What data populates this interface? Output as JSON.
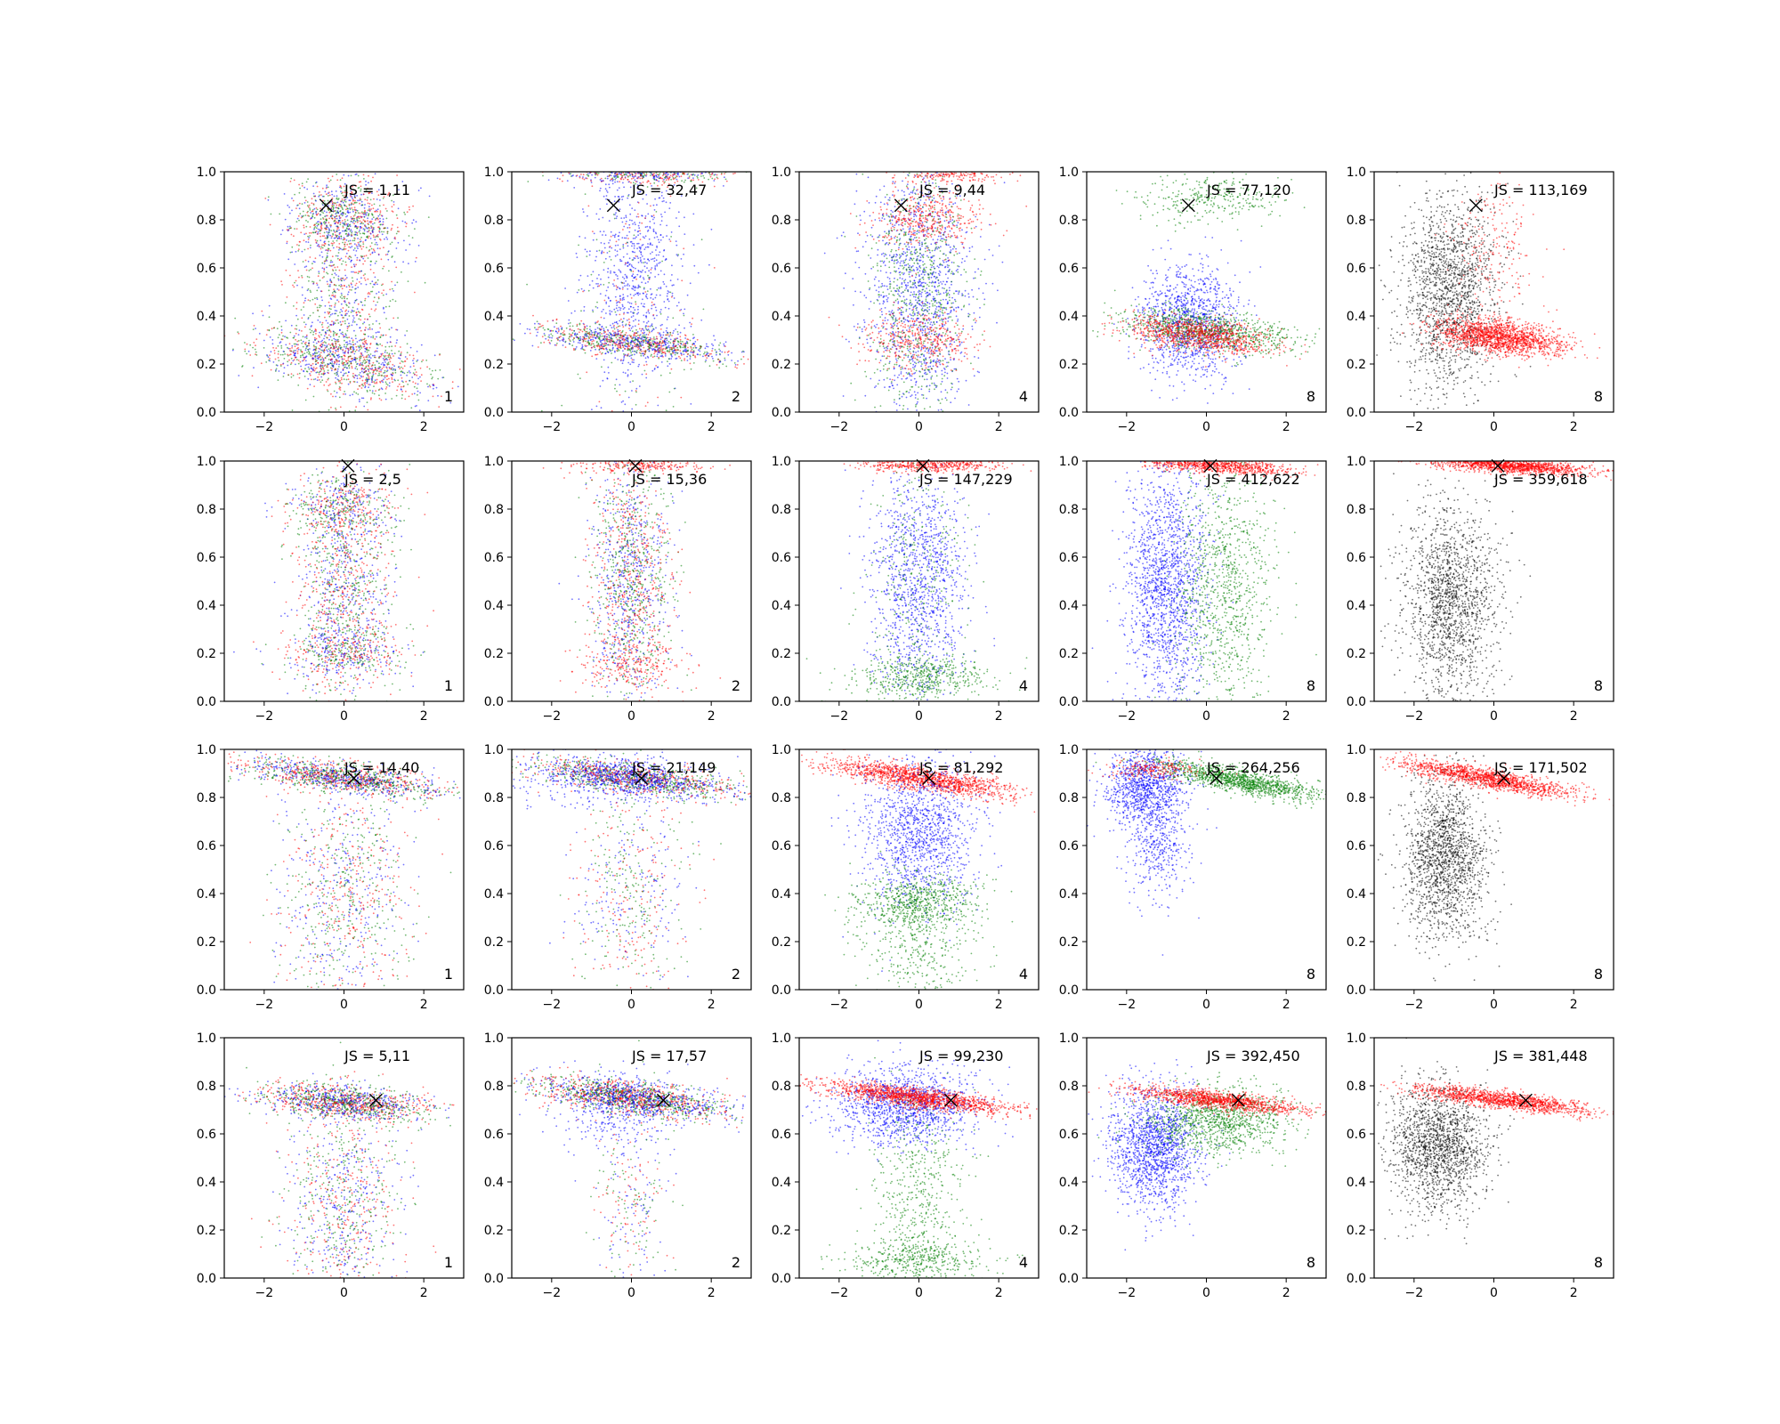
{
  "figure": {
    "colors": {
      "red": "#ff0000",
      "green": "#008000",
      "blue": "#0000ff",
      "black": "#000000"
    }
  },
  "chart_data": [
    {
      "type": "scatter",
      "row": 1,
      "col": 1,
      "annotation": "JS = 1,11",
      "label": "1",
      "marker": {
        "x": -0.45,
        "y": 0.86
      },
      "xlim": [
        -3,
        3
      ],
      "ylim": [
        0,
        1
      ],
      "xticks": [
        -2,
        0,
        2
      ],
      "yticks": [
        0.0,
        0.2,
        0.4,
        0.6,
        0.8,
        1.0
      ],
      "clusters": [
        {
          "color": "mixed",
          "cx": 0,
          "cy": 0.21,
          "sx": 1.1,
          "sy": 0.06,
          "slope": -0.03,
          "n": 1000
        },
        {
          "color": "mixed",
          "cx": 0,
          "cy": 0.8,
          "sx": 0.7,
          "sy": 0.07,
          "n": 700
        },
        {
          "color": "mixed",
          "cx": 0,
          "cy": 0.5,
          "sx": 0.7,
          "sy": 0.28,
          "n": 1100
        }
      ]
    },
    {
      "type": "scatter",
      "row": 1,
      "col": 2,
      "annotation": "JS = 32,47",
      "label": "2",
      "marker": {
        "x": -0.45,
        "y": 0.86
      },
      "xlim": [
        -3,
        3
      ],
      "ylim": [
        0,
        1
      ],
      "xticks": [
        -2,
        0,
        2
      ],
      "yticks": [
        0.0,
        0.2,
        0.4,
        0.6,
        0.8,
        1.0
      ],
      "clusters": [
        {
          "color": "mixed",
          "cx": 0,
          "cy": 0.29,
          "sx": 1.2,
          "sy": 0.03,
          "slope": -0.02,
          "n": 1100
        },
        {
          "color": "mixed",
          "cx": 0.4,
          "cy": 0.99,
          "sx": 1.0,
          "sy": 0.02,
          "n": 500
        },
        {
          "color": "blue",
          "cx": 0,
          "cy": 0.6,
          "sx": 0.6,
          "sy": 0.25,
          "n": 700
        },
        {
          "color": "mixed",
          "cx": 0,
          "cy": 0.45,
          "sx": 0.8,
          "sy": 0.3,
          "n": 300
        }
      ]
    },
    {
      "type": "scatter",
      "row": 1,
      "col": 3,
      "annotation": "JS = 9,44",
      "label": "4",
      "marker": {
        "x": -0.45,
        "y": 0.86
      },
      "xlim": [
        -3,
        3
      ],
      "ylim": [
        0,
        1
      ],
      "xticks": [
        -2,
        0,
        2
      ],
      "yticks": [
        0.0,
        0.2,
        0.4,
        0.6,
        0.8,
        1.0
      ],
      "clusters": [
        {
          "color": "blue",
          "cx": 0,
          "cy": 0.5,
          "sx": 0.7,
          "sy": 0.28,
          "n": 1200
        },
        {
          "color": "red",
          "cx": 0.2,
          "cy": 0.8,
          "sx": 0.7,
          "sy": 0.06,
          "n": 400
        },
        {
          "color": "red",
          "cx": 0,
          "cy": 0.3,
          "sx": 0.7,
          "sy": 0.06,
          "n": 400
        },
        {
          "color": "green",
          "cx": 0,
          "cy": 0.5,
          "sx": 0.6,
          "sy": 0.3,
          "n": 700
        },
        {
          "color": "red",
          "cx": 0.8,
          "cy": 0.99,
          "sx": 0.7,
          "sy": 0.02,
          "n": 200
        }
      ]
    },
    {
      "type": "scatter",
      "row": 1,
      "col": 4,
      "annotation": "JS = 77,120",
      "label": "8",
      "marker": {
        "x": -0.45,
        "y": 0.86
      },
      "xlim": [
        -3,
        3
      ],
      "ylim": [
        0,
        1
      ],
      "xticks": [
        -2,
        0,
        2
      ],
      "yticks": [
        0.0,
        0.2,
        0.4,
        0.6,
        0.8,
        1.0
      ],
      "clusters": [
        {
          "color": "blue",
          "cx": -0.4,
          "cy": 0.38,
          "sx": 0.6,
          "sy": 0.12,
          "n": 1100
        },
        {
          "color": "green",
          "cx": 0,
          "cy": 0.34,
          "sx": 1.1,
          "sy": 0.04,
          "slope": -0.02,
          "n": 900
        },
        {
          "color": "red",
          "cx": -0.2,
          "cy": 0.32,
          "sx": 0.9,
          "sy": 0.035,
          "slope": -0.02,
          "n": 900
        },
        {
          "color": "green",
          "cx": 0.1,
          "cy": 0.89,
          "sx": 0.9,
          "sy": 0.05,
          "n": 300
        }
      ]
    },
    {
      "type": "scatter",
      "row": 1,
      "col": 5,
      "annotation": "JS = 113,169",
      "label": "8",
      "marker": {
        "x": -0.45,
        "y": 0.86
      },
      "xlim": [
        -3,
        3
      ],
      "ylim": [
        0,
        1
      ],
      "xticks": [
        -2,
        0,
        2
      ],
      "yticks": [
        0.0,
        0.2,
        0.4,
        0.6,
        0.8,
        1.0
      ],
      "clusters": [
        {
          "color": "black",
          "cx": -1.1,
          "cy": 0.5,
          "sx": 0.6,
          "sy": 0.2,
          "n": 1600
        },
        {
          "color": "red",
          "cx": 0.2,
          "cy": 0.31,
          "sx": 0.8,
          "sy": 0.035,
          "slope": -0.02,
          "n": 1600
        },
        {
          "color": "red",
          "cx": 0,
          "cy": 0.68,
          "sx": 0.5,
          "sy": 0.15,
          "n": 200
        }
      ]
    },
    {
      "type": "scatter",
      "row": 2,
      "col": 1,
      "annotation": "JS = 2,5",
      "label": "1",
      "marker": {
        "x": 0.1,
        "y": 0.98
      },
      "xlim": [
        -3,
        3
      ],
      "ylim": [
        0,
        1
      ],
      "xticks": [
        -2,
        0,
        2
      ],
      "yticks": [
        0.0,
        0.2,
        0.4,
        0.6,
        0.8,
        1.0
      ],
      "clusters": [
        {
          "color": "mixed",
          "cx": 0,
          "cy": 0.5,
          "sx": 0.6,
          "sy": 0.28,
          "n": 1500
        },
        {
          "color": "mixed",
          "cx": 0,
          "cy": 0.2,
          "sx": 0.8,
          "sy": 0.05,
          "n": 400
        },
        {
          "color": "mixed",
          "cx": 0,
          "cy": 0.8,
          "sx": 0.7,
          "sy": 0.05,
          "n": 400
        }
      ]
    },
    {
      "type": "scatter",
      "row": 2,
      "col": 2,
      "annotation": "JS = 15,36",
      "label": "2",
      "marker": {
        "x": 0.1,
        "y": 0.98
      },
      "xlim": [
        -3,
        3
      ],
      "ylim": [
        0,
        1
      ],
      "xticks": [
        -2,
        0,
        2
      ],
      "yticks": [
        0.0,
        0.2,
        0.4,
        0.6,
        0.8,
        1.0
      ],
      "clusters": [
        {
          "color": "mixed",
          "cx": 0,
          "cy": 0.5,
          "sx": 0.5,
          "sy": 0.28,
          "n": 1700
        },
        {
          "color": "red",
          "cx": 0.3,
          "cy": 0.99,
          "sx": 0.8,
          "sy": 0.02,
          "n": 300
        },
        {
          "color": "red",
          "cx": 0,
          "cy": 0.15,
          "sx": 0.7,
          "sy": 0.05,
          "n": 200
        }
      ]
    },
    {
      "type": "scatter",
      "row": 2,
      "col": 3,
      "annotation": "JS = 147,229",
      "label": "4",
      "marker": {
        "x": 0.1,
        "y": 0.98
      },
      "xlim": [
        -3,
        3
      ],
      "ylim": [
        0,
        1
      ],
      "xticks": [
        -2,
        0,
        2
      ],
      "yticks": [
        0.0,
        0.2,
        0.4,
        0.6,
        0.8,
        1.0
      ],
      "clusters": [
        {
          "color": "blue",
          "cx": 0,
          "cy": 0.5,
          "sx": 0.6,
          "sy": 0.25,
          "n": 1200
        },
        {
          "color": "green",
          "cx": 0,
          "cy": 0.1,
          "sx": 0.9,
          "sy": 0.05,
          "n": 500
        },
        {
          "color": "red",
          "cx": 0.3,
          "cy": 0.985,
          "sx": 0.9,
          "sy": 0.015,
          "n": 500
        },
        {
          "color": "green",
          "cx": 0,
          "cy": 0.5,
          "sx": 0.6,
          "sy": 0.3,
          "n": 300
        }
      ]
    },
    {
      "type": "scatter",
      "row": 2,
      "col": 4,
      "annotation": "JS = 412,622",
      "label": "8",
      "marker": {
        "x": 0.1,
        "y": 0.98
      },
      "xlim": [
        -3,
        3
      ],
      "ylim": [
        0,
        1
      ],
      "xticks": [
        -2,
        0,
        2
      ],
      "yticks": [
        0.0,
        0.2,
        0.4,
        0.6,
        0.8,
        1.0
      ],
      "clusters": [
        {
          "color": "blue",
          "cx": -1.0,
          "cy": 0.5,
          "sx": 0.5,
          "sy": 0.25,
          "n": 1600
        },
        {
          "color": "green",
          "cx": 0.4,
          "cy": 0.5,
          "sx": 0.6,
          "sy": 0.28,
          "n": 1000
        },
        {
          "color": "red",
          "cx": 0.3,
          "cy": 0.98,
          "sx": 0.9,
          "sy": 0.015,
          "slope": -0.01,
          "n": 800
        }
      ]
    },
    {
      "type": "scatter",
      "row": 2,
      "col": 5,
      "annotation": "JS = 359,618",
      "label": "8",
      "marker": {
        "x": 0.1,
        "y": 0.98
      },
      "xlim": [
        -3,
        3
      ],
      "ylim": [
        0,
        1
      ],
      "xticks": [
        -2,
        0,
        2
      ],
      "yticks": [
        0.0,
        0.2,
        0.4,
        0.6,
        0.8,
        1.0
      ],
      "clusters": [
        {
          "color": "black",
          "cx": -1.1,
          "cy": 0.4,
          "sx": 0.6,
          "sy": 0.22,
          "n": 1600
        },
        {
          "color": "red",
          "cx": 0.4,
          "cy": 0.98,
          "sx": 1.0,
          "sy": 0.015,
          "slope": -0.01,
          "n": 1300
        }
      ]
    },
    {
      "type": "scatter",
      "row": 3,
      "col": 1,
      "annotation": "JS = 14,40",
      "label": "1",
      "marker": {
        "x": 0.25,
        "y": 0.88
      },
      "xlim": [
        -3,
        3
      ],
      "ylim": [
        0,
        1
      ],
      "xticks": [
        -2,
        0,
        2
      ],
      "yticks": [
        0.0,
        0.2,
        0.4,
        0.6,
        0.8,
        1.0
      ],
      "clusters": [
        {
          "color": "mixed",
          "cx": 0,
          "cy": 0.88,
          "sx": 1.3,
          "sy": 0.03,
          "slope": -0.02,
          "n": 1400
        },
        {
          "color": "mixed",
          "cx": 0,
          "cy": 0.4,
          "sx": 0.8,
          "sy": 0.25,
          "n": 1000
        }
      ]
    },
    {
      "type": "scatter",
      "row": 3,
      "col": 2,
      "annotation": "JS = 21,149",
      "label": "2",
      "marker": {
        "x": 0.25,
        "y": 0.88
      },
      "xlim": [
        -3,
        3
      ],
      "ylim": [
        0,
        1
      ],
      "xticks": [
        -2,
        0,
        2
      ],
      "yticks": [
        0.0,
        0.2,
        0.4,
        0.6,
        0.8,
        1.0
      ],
      "clusters": [
        {
          "color": "mixed",
          "cx": 0,
          "cy": 0.88,
          "sx": 1.3,
          "sy": 0.03,
          "slope": -0.02,
          "n": 1500
        },
        {
          "color": "blue",
          "cx": -0.5,
          "cy": 0.88,
          "sx": 1.2,
          "sy": 0.05,
          "n": 500
        },
        {
          "color": "mixed",
          "cx": 0,
          "cy": 0.4,
          "sx": 0.7,
          "sy": 0.25,
          "n": 600
        }
      ]
    },
    {
      "type": "scatter",
      "row": 3,
      "col": 3,
      "annotation": "JS = 81,292",
      "label": "4",
      "marker": {
        "x": 0.25,
        "y": 0.88
      },
      "xlim": [
        -3,
        3
      ],
      "ylim": [
        0,
        1
      ],
      "xticks": [
        -2,
        0,
        2
      ],
      "yticks": [
        0.0,
        0.2,
        0.4,
        0.6,
        0.8,
        1.0
      ],
      "clusters": [
        {
          "color": "red",
          "cx": 0,
          "cy": 0.88,
          "sx": 1.2,
          "sy": 0.025,
          "slope": -0.025,
          "n": 1400
        },
        {
          "color": "blue",
          "cx": 0,
          "cy": 0.65,
          "sx": 0.7,
          "sy": 0.15,
          "n": 1200
        },
        {
          "color": "green",
          "cx": 0,
          "cy": 0.36,
          "sx": 0.8,
          "sy": 0.06,
          "n": 700
        },
        {
          "color": "green",
          "cx": 0,
          "cy": 0.15,
          "sx": 0.7,
          "sy": 0.1,
          "n": 300
        }
      ]
    },
    {
      "type": "scatter",
      "row": 3,
      "col": 4,
      "annotation": "JS = 264,256",
      "label": "8",
      "marker": {
        "x": 0.25,
        "y": 0.88
      },
      "xlim": [
        -3,
        3
      ],
      "ylim": [
        0,
        1
      ],
      "xticks": [
        -2,
        0,
        2
      ],
      "yticks": [
        0.0,
        0.2,
        0.4,
        0.6,
        0.8,
        1.0
      ],
      "clusters": [
        {
          "color": "blue",
          "cx": -1.5,
          "cy": 0.85,
          "sx": 0.5,
          "sy": 0.08,
          "n": 1000
        },
        {
          "color": "blue",
          "cx": -1.2,
          "cy": 0.6,
          "sx": 0.4,
          "sy": 0.12,
          "n": 400
        },
        {
          "color": "green",
          "cx": 0.8,
          "cy": 0.87,
          "sx": 1.0,
          "sy": 0.025,
          "slope": -0.03,
          "n": 1200
        },
        {
          "color": "red",
          "cx": -1.3,
          "cy": 0.92,
          "sx": 0.6,
          "sy": 0.02,
          "n": 200
        }
      ]
    },
    {
      "type": "scatter",
      "row": 3,
      "col": 5,
      "annotation": "JS = 171,502",
      "label": "8",
      "marker": {
        "x": 0.25,
        "y": 0.88
      },
      "xlim": [
        -3,
        3
      ],
      "ylim": [
        0,
        1
      ],
      "xticks": [
        -2,
        0,
        2
      ],
      "yticks": [
        0.0,
        0.2,
        0.4,
        0.6,
        0.8,
        1.0
      ],
      "clusters": [
        {
          "color": "black",
          "cx": -1.2,
          "cy": 0.55,
          "sx": 0.5,
          "sy": 0.17,
          "n": 1600
        },
        {
          "color": "red",
          "cx": -0.2,
          "cy": 0.88,
          "sx": 1.1,
          "sy": 0.02,
          "slope": -0.03,
          "n": 1400
        }
      ]
    },
    {
      "type": "scatter",
      "row": 4,
      "col": 1,
      "annotation": "JS = 5,11",
      "label": "1",
      "marker": {
        "x": 0.8,
        "y": 0.74
      },
      "xlim": [
        -3,
        3
      ],
      "ylim": [
        0,
        1
      ],
      "xticks": [
        -2,
        0,
        2
      ],
      "yticks": [
        0.0,
        0.2,
        0.4,
        0.6,
        0.8,
        1.0
      ],
      "clusters": [
        {
          "color": "mixed",
          "cx": 0,
          "cy": 0.73,
          "sx": 1.1,
          "sy": 0.035,
          "slope": -0.015,
          "n": 1400
        },
        {
          "color": "mixed",
          "cx": 0,
          "cy": 0.3,
          "sx": 0.7,
          "sy": 0.22,
          "n": 1000
        }
      ]
    },
    {
      "type": "scatter",
      "row": 4,
      "col": 2,
      "annotation": "JS = 17,57",
      "label": "2",
      "marker": {
        "x": 0.8,
        "y": 0.74
      },
      "xlim": [
        -3,
        3
      ],
      "ylim": [
        0,
        1
      ],
      "xticks": [
        -2,
        0,
        2
      ],
      "yticks": [
        0.0,
        0.2,
        0.4,
        0.6,
        0.8,
        1.0
      ],
      "clusters": [
        {
          "color": "mixed",
          "cx": 0,
          "cy": 0.75,
          "sx": 1.2,
          "sy": 0.035,
          "slope": -0.02,
          "n": 1800
        },
        {
          "color": "blue",
          "cx": -0.3,
          "cy": 0.7,
          "sx": 0.8,
          "sy": 0.08,
          "n": 300
        },
        {
          "color": "mixed",
          "cx": 0,
          "cy": 0.35,
          "sx": 0.5,
          "sy": 0.2,
          "n": 300
        }
      ]
    },
    {
      "type": "scatter",
      "row": 4,
      "col": 3,
      "annotation": "JS = 99,230",
      "label": "4",
      "marker": {
        "x": 0.8,
        "y": 0.74
      },
      "xlim": [
        -3,
        3
      ],
      "ylim": [
        0,
        1
      ],
      "xticks": [
        -2,
        0,
        2
      ],
      "yticks": [
        0.0,
        0.2,
        0.4,
        0.6,
        0.8,
        1.0
      ],
      "clusters": [
        {
          "color": "blue",
          "cx": -0.3,
          "cy": 0.72,
          "sx": 0.9,
          "sy": 0.08,
          "n": 1300
        },
        {
          "color": "red",
          "cx": 0,
          "cy": 0.75,
          "sx": 1.2,
          "sy": 0.02,
          "slope": -0.02,
          "n": 1400
        },
        {
          "color": "green",
          "cx": 0,
          "cy": 0.07,
          "sx": 0.9,
          "sy": 0.04,
          "n": 400
        },
        {
          "color": "green",
          "cx": 0,
          "cy": 0.35,
          "sx": 0.6,
          "sy": 0.2,
          "n": 500
        }
      ]
    },
    {
      "type": "scatter",
      "row": 4,
      "col": 4,
      "annotation": "JS = 392,450",
      "label": "8",
      "marker": {
        "x": 0.8,
        "y": 0.74
      },
      "xlim": [
        -3,
        3
      ],
      "ylim": [
        0,
        1
      ],
      "xticks": [
        -2,
        0,
        2
      ],
      "yticks": [
        0.0,
        0.2,
        0.4,
        0.6,
        0.8,
        1.0
      ],
      "clusters": [
        {
          "color": "blue",
          "cx": -1.3,
          "cy": 0.55,
          "sx": 0.55,
          "sy": 0.13,
          "n": 1500
        },
        {
          "color": "green",
          "cx": 0.3,
          "cy": 0.66,
          "sx": 0.9,
          "sy": 0.07,
          "n": 1100
        },
        {
          "color": "red",
          "cx": 0.3,
          "cy": 0.74,
          "sx": 1.1,
          "sy": 0.018,
          "slope": -0.02,
          "n": 1200
        }
      ]
    },
    {
      "type": "scatter",
      "row": 4,
      "col": 5,
      "annotation": "JS = 381,448",
      "label": "8",
      "marker": {
        "x": 0.8,
        "y": 0.74
      },
      "xlim": [
        -3,
        3
      ],
      "ylim": [
        0,
        1
      ],
      "xticks": [
        -2,
        0,
        2
      ],
      "yticks": [
        0.0,
        0.2,
        0.4,
        0.6,
        0.8,
        1.0
      ],
      "clusters": [
        {
          "color": "black",
          "cx": -1.4,
          "cy": 0.55,
          "sx": 0.6,
          "sy": 0.13,
          "n": 1600
        },
        {
          "color": "red",
          "cx": 0.3,
          "cy": 0.74,
          "sx": 1.1,
          "sy": 0.018,
          "slope": -0.02,
          "n": 1300
        }
      ]
    }
  ]
}
